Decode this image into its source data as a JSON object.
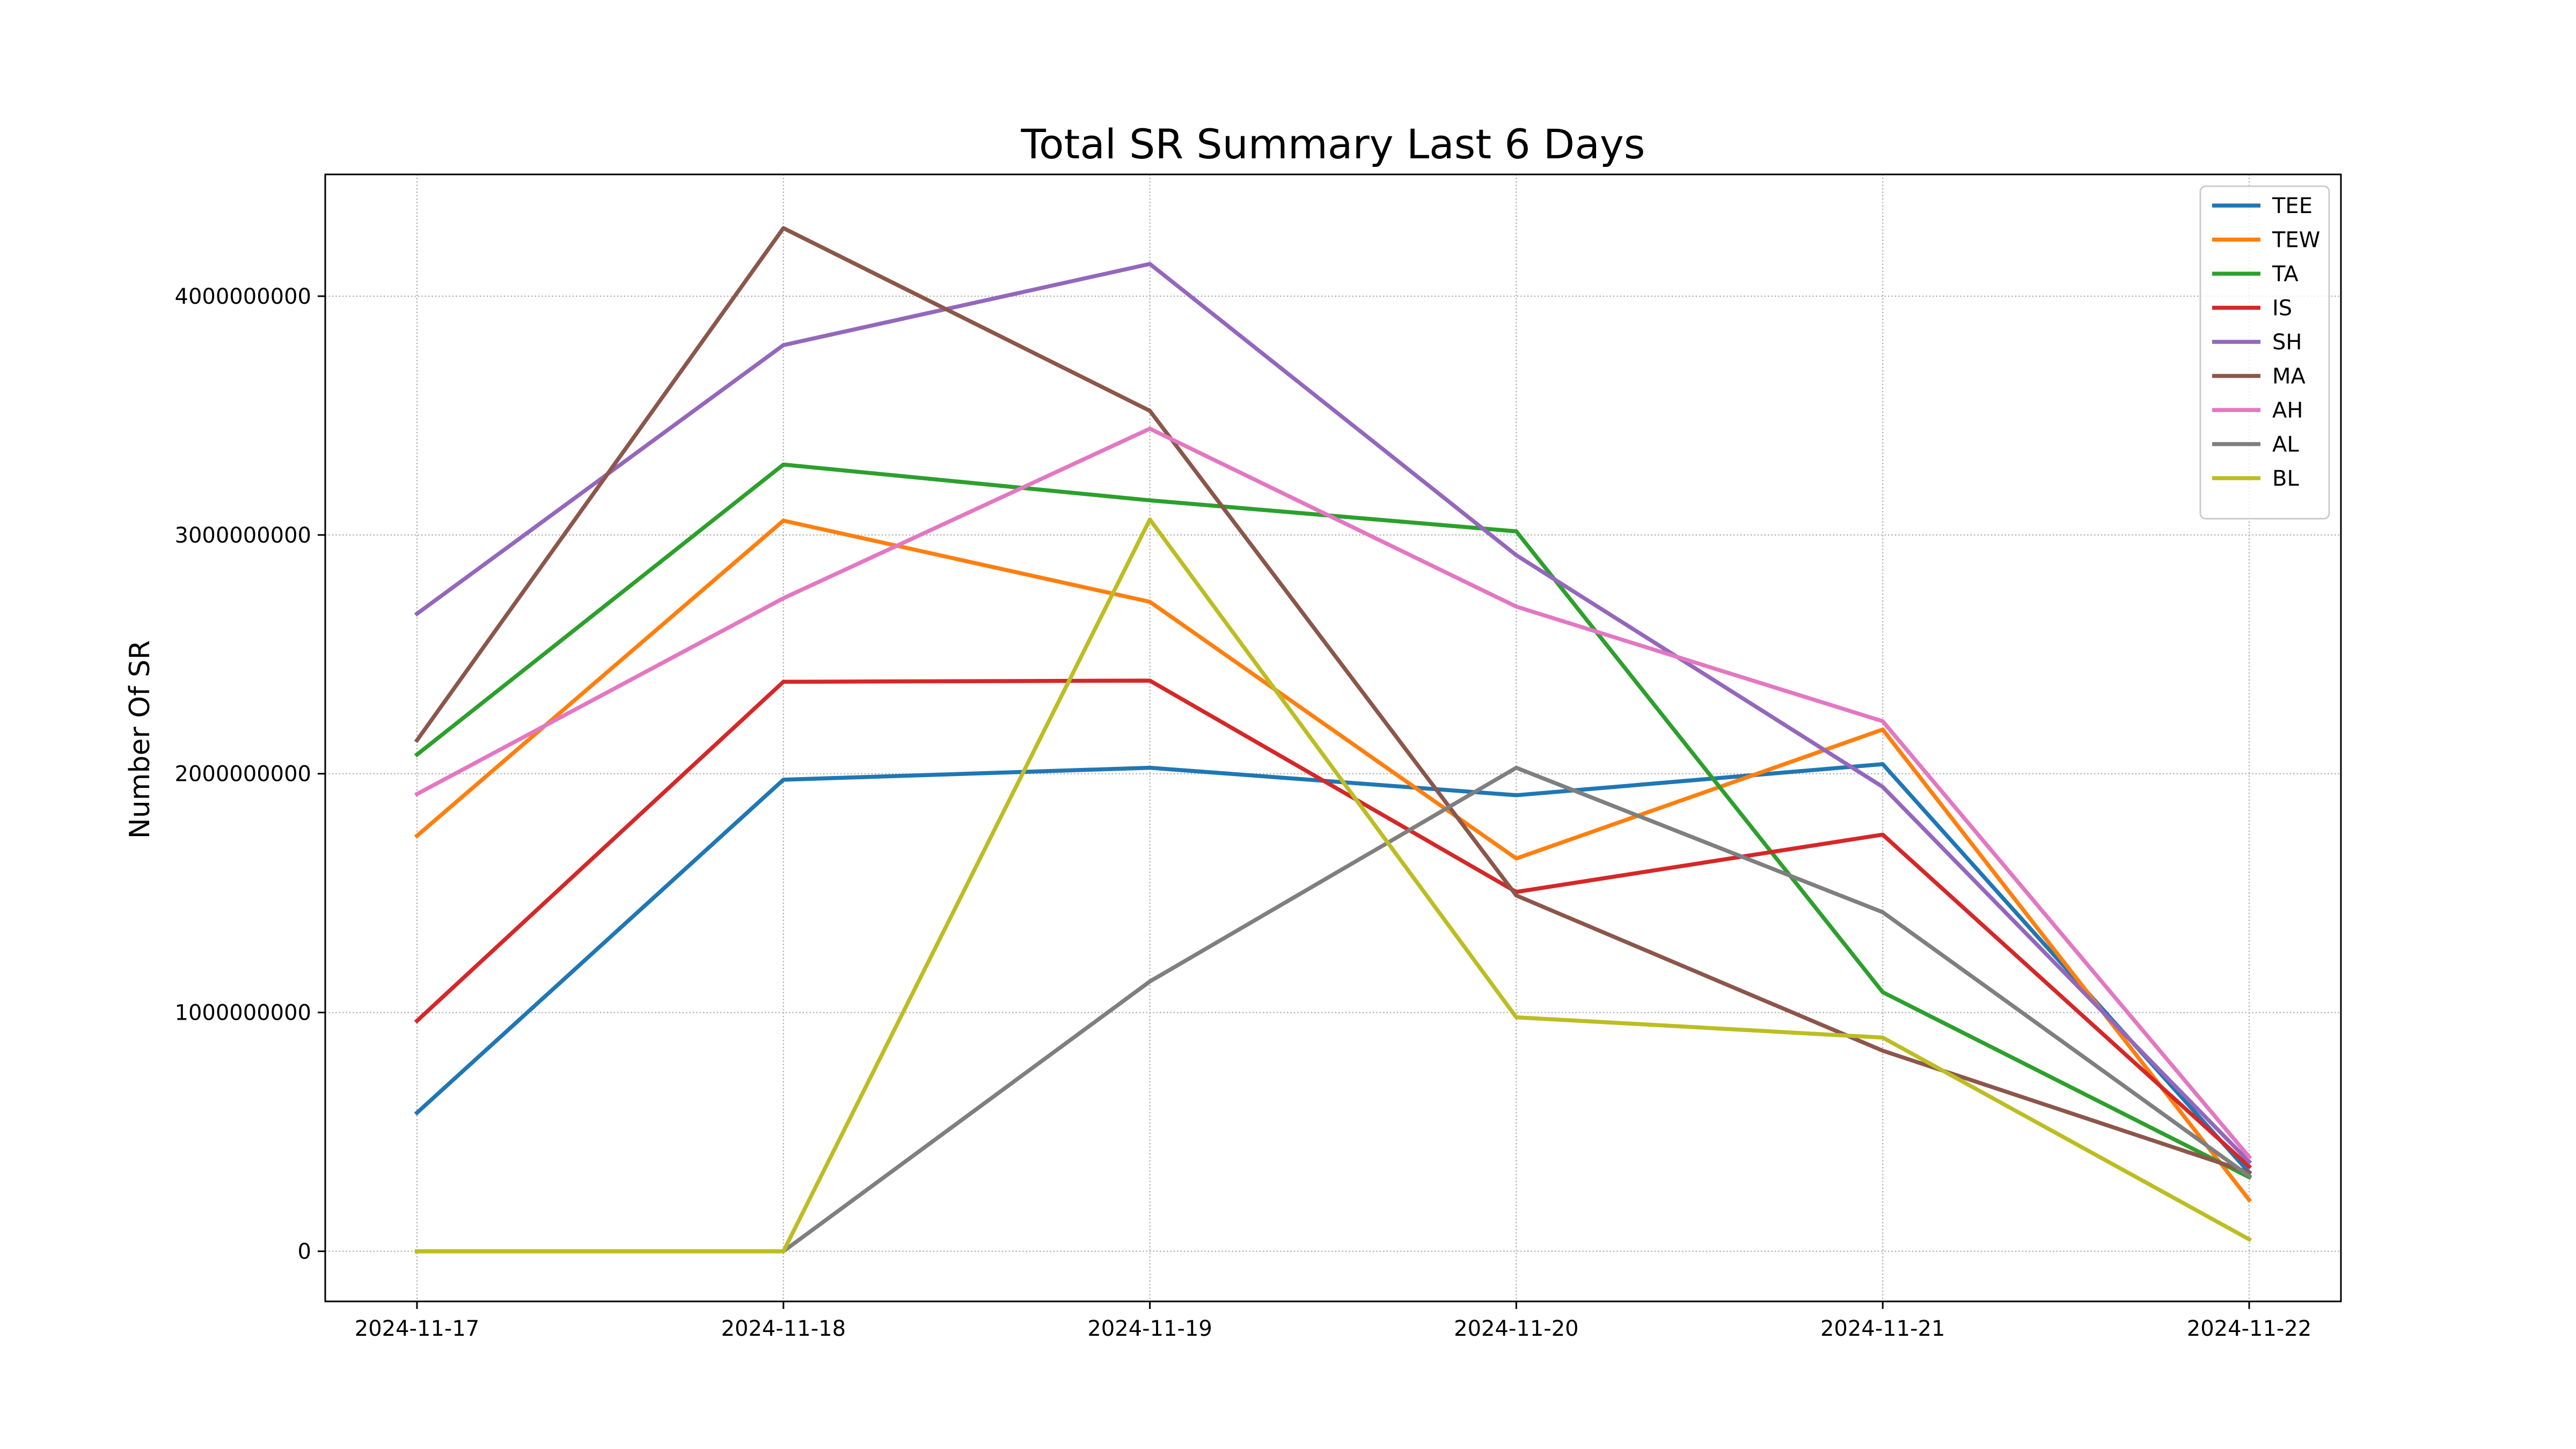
{
  "chart_data": {
    "type": "line",
    "title": "Total SR Summary Last 6 Days",
    "xlabel": "",
    "ylabel": "Number Of SR",
    "x": [
      "2024-11-17",
      "2024-11-18",
      "2024-11-19",
      "2024-11-20",
      "2024-11-21",
      "2024-11-22"
    ],
    "y_ticks": [
      0,
      1000000000,
      2000000000,
      3000000000,
      4000000000
    ],
    "y_tick_labels": [
      "0",
      "1000000000",
      "2000000000",
      "3000000000",
      "4000000000"
    ],
    "ylim": [
      -210000000,
      4510000000
    ],
    "grid": true,
    "grid_style": "dotted",
    "legend_position": "upper right",
    "series": [
      {
        "name": "TEE",
        "color": "#1f77b4",
        "values": [
          580000000,
          1975000000,
          2025000000,
          1910000000,
          2040000000,
          330000000
        ]
      },
      {
        "name": "TEW",
        "color": "#ff7f0e",
        "values": [
          1740000000,
          3060000000,
          2720000000,
          1645000000,
          2185000000,
          215000000
        ]
      },
      {
        "name": "TA",
        "color": "#2ca02c",
        "values": [
          2080000000,
          3295000000,
          3145000000,
          3015000000,
          1085000000,
          310000000
        ]
      },
      {
        "name": "IS",
        "color": "#d62728",
        "values": [
          965000000,
          2385000000,
          2390000000,
          1505000000,
          1745000000,
          355000000
        ]
      },
      {
        "name": "SH",
        "color": "#9467bd",
        "values": [
          2670000000,
          3795000000,
          4135000000,
          2915000000,
          1945000000,
          375000000
        ]
      },
      {
        "name": "MA",
        "color": "#8c564b",
        "values": [
          2140000000,
          4285000000,
          3520000000,
          1490000000,
          840000000,
          330000000
        ]
      },
      {
        "name": "AH",
        "color": "#e377c2",
        "values": [
          1915000000,
          2735000000,
          3445000000,
          2700000000,
          2220000000,
          395000000
        ]
      },
      {
        "name": "AL",
        "color": "#7f7f7f",
        "values": [
          0,
          0,
          1130000000,
          2025000000,
          1420000000,
          315000000
        ]
      },
      {
        "name": "BL",
        "color": "#bcbd22",
        "values": [
          0,
          0,
          3065000000,
          980000000,
          895000000,
          50000000
        ]
      }
    ]
  }
}
